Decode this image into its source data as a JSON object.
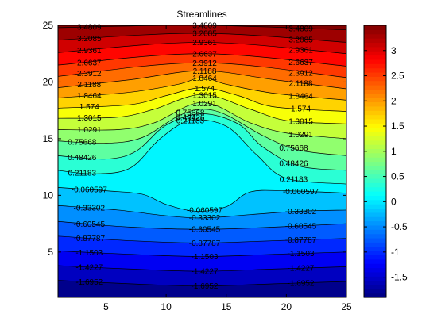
{
  "chart_data": {
    "type": "contour",
    "title": "Streamlines",
    "xlabel": "",
    "ylabel": "",
    "xlim": [
      1,
      25
    ],
    "ylim": [
      1,
      25
    ],
    "x_ticks": [
      5,
      10,
      15,
      20,
      25
    ],
    "y_ticks": [
      5,
      10,
      15,
      20,
      25
    ],
    "colormap": "jet",
    "colorbar": {
      "range": [
        -1.9,
        3.5
      ],
      "ticks": [
        3,
        2.5,
        2,
        1.5,
        1,
        0.5,
        0,
        -0.5,
        -1,
        -1.5
      ],
      "tick_labels": [
        "3",
        "2.5",
        "2",
        "1.5",
        "1",
        "0.5",
        "0",
        "-0.5",
        "-1",
        "-1.5"
      ]
    },
    "contour_levels": [
      3.4809,
      3.2085,
      2.9361,
      2.6637,
      2.3912,
      2.1188,
      1.8464,
      1.574,
      1.3015,
      1.0291,
      0.75668,
      0.48426,
      0.21183,
      -0.060597,
      -0.33302,
      -0.60545,
      -0.87787,
      -1.1503,
      -1.4227,
      -1.6952
    ],
    "contour_labels": [
      "3.4809",
      "3.2085",
      "2.9361",
      "2.6637",
      "2.3912",
      "2.1188",
      "1.8464",
      "1.574",
      "1.3015",
      "1.0291",
      "0.75668",
      "0.48426",
      "0.21183",
      "-0.060597",
      "-0.33302",
      "-0.60545",
      "-0.87787",
      "-1.1503",
      "-1.4227",
      "-1.6952"
    ],
    "flat_region_min": 0.21183,
    "flat_region_max": -0.060597,
    "grid": false
  }
}
